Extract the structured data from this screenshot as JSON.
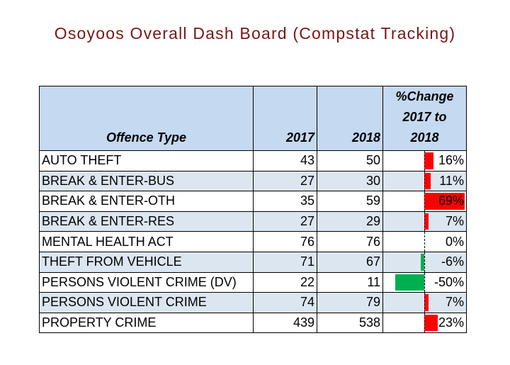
{
  "title": "Osoyoos Overall Dash Board (Compstat Tracking)",
  "table": {
    "headers": [
      "Offence Type",
      "2017",
      "2018",
      [
        "%Change",
        "2017 to",
        "2018"
      ]
    ],
    "rows": [
      [
        "AUTO THEFT",
        43,
        50,
        "16%"
      ],
      [
        "BREAK & ENTER-BUS",
        27,
        30,
        "11%"
      ],
      [
        "BREAK & ENTER-OTH",
        35,
        59,
        "69%"
      ],
      [
        "BREAK & ENTER-RES",
        27,
        29,
        "7%"
      ],
      [
        "MENTAL HEALTH ACT",
        76,
        76,
        "0%"
      ],
      [
        "THEFT FROM VEHICLE",
        71,
        67,
        "-6%"
      ],
      [
        "PERSONS VIOLENT CRIME (DV)",
        22,
        11,
        "-50%"
      ],
      [
        "PERSONS VIOLENT CRIME",
        74,
        79,
        "7%"
      ],
      [
        "PROPERTY CRIME",
        439,
        538,
        "23%"
      ]
    ],
    "change_values": [
      16,
      11,
      69,
      7,
      0,
      -6,
      -50,
      7,
      23
    ],
    "colors": {
      "increase": "#ff0000",
      "decrease": "#00b050"
    }
  }
}
